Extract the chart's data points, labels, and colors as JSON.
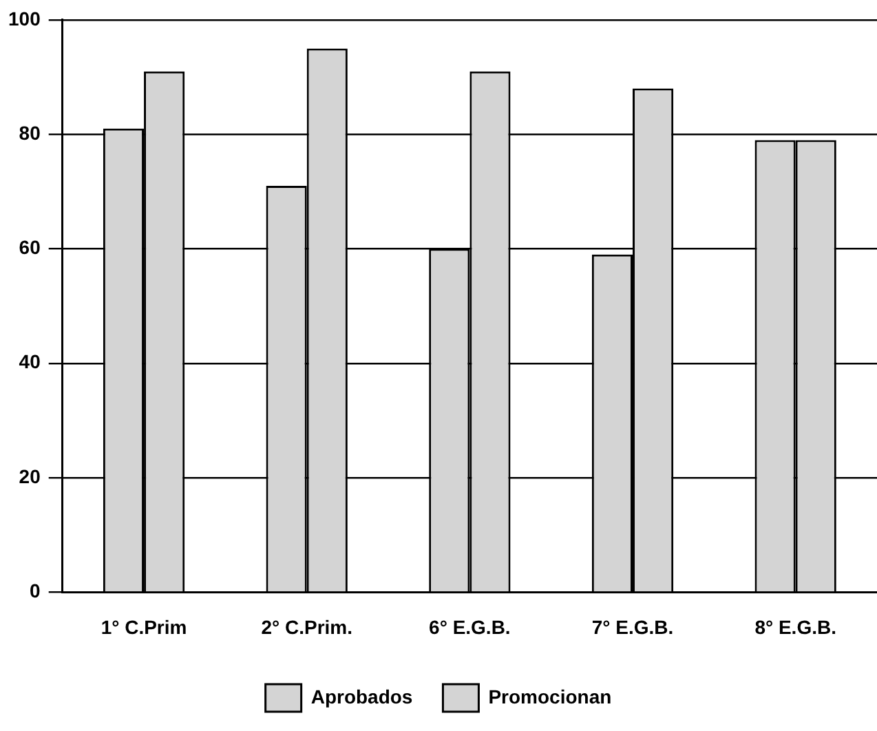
{
  "chart_data": {
    "type": "bar",
    "categories": [
      "1° C.Prim",
      "2° C.Prim.",
      "6° E.G.B.",
      "7° E.G.B.",
      "8° E.G.B."
    ],
    "series": [
      {
        "name": "Aprobados",
        "color": "#d4d4d4",
        "values": [
          81,
          71,
          60,
          59,
          79
        ]
      },
      {
        "name": "Promocionan",
        "color": "#d4d4d4",
        "values": [
          91,
          95,
          91,
          88,
          79
        ]
      }
    ],
    "ylim": [
      0,
      100
    ],
    "yticks": [
      0,
      20,
      40,
      60,
      80,
      100
    ],
    "grid": "y",
    "legend": "bottom"
  }
}
